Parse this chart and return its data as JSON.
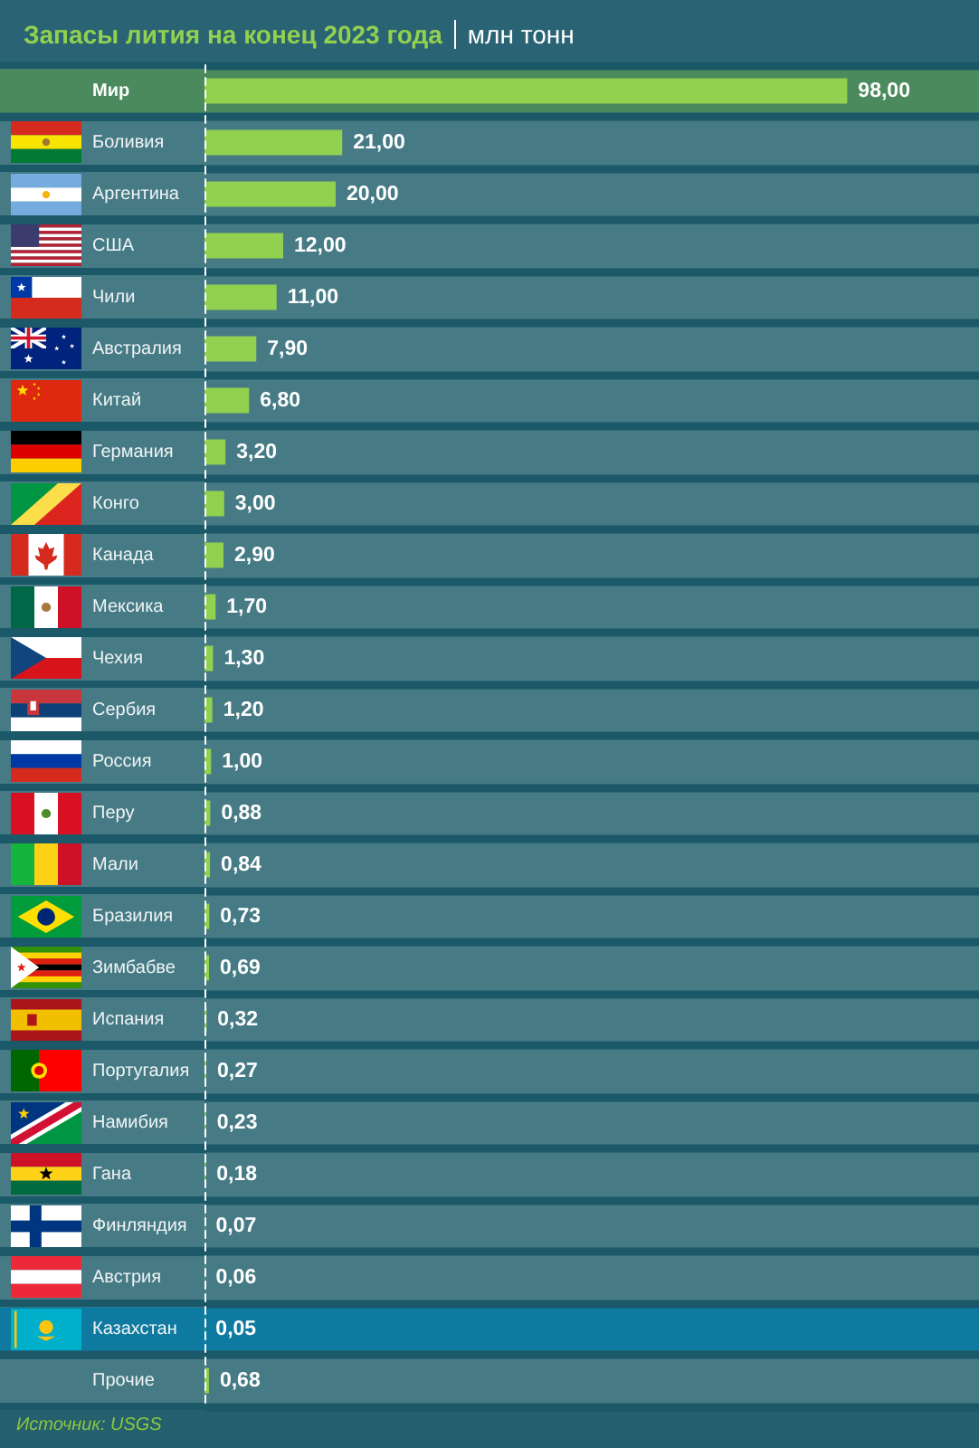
{
  "chart_data": {
    "type": "bar",
    "orientation": "horizontal",
    "title": "Запасы лития на конец 2023 года",
    "subtitle": "млн тонн",
    "categories": [
      "Мир",
      "Боливия",
      "Аргентина",
      "США",
      "Чили",
      "Австралия",
      "Китай",
      "Германия",
      "Конго",
      "Канада",
      "Мексика",
      "Чехия",
      "Сербия",
      "Россия",
      "Перу",
      "Мали",
      "Бразилия",
      "Зимбабве",
      "Испания",
      "Португалия",
      "Намибия",
      "Гана",
      "Финляндия",
      "Австрия",
      "Казахстан",
      "Прочие"
    ],
    "values": [
      98,
      21,
      20,
      12,
      11,
      7.9,
      6.8,
      3.2,
      3,
      2.9,
      1.7,
      1.3,
      1.2,
      1,
      0.88,
      0.84,
      0.73,
      0.69,
      0.32,
      0.27,
      0.23,
      0.18,
      0.07,
      0.06,
      0.05,
      0.68
    ],
    "value_labels": [
      "98,00",
      "21,00",
      "20,00",
      "12,00",
      "11,00",
      "7,90",
      "6,80",
      "3,20",
      "3,00",
      "2,90",
      "1,70",
      "1,30",
      "1,20",
      "1,00",
      "0,88",
      "0,84",
      "0,73",
      "0,69",
      "0,32",
      "0,27",
      "0,23",
      "0,18",
      "0,07",
      "0,06",
      "0,05",
      "0,68"
    ],
    "color": "#92d050",
    "grid": "y",
    "bands": [
      {
        "axis": "y",
        "from": "Мир",
        "to": "Мир",
        "color": "#4a8a5c"
      },
      {
        "axis": "y",
        "from": "Казахстан",
        "to": "Казахстан",
        "color": "#0e7aa0"
      }
    ],
    "annotations": [
      "Источник: USGS"
    ]
  }
}
